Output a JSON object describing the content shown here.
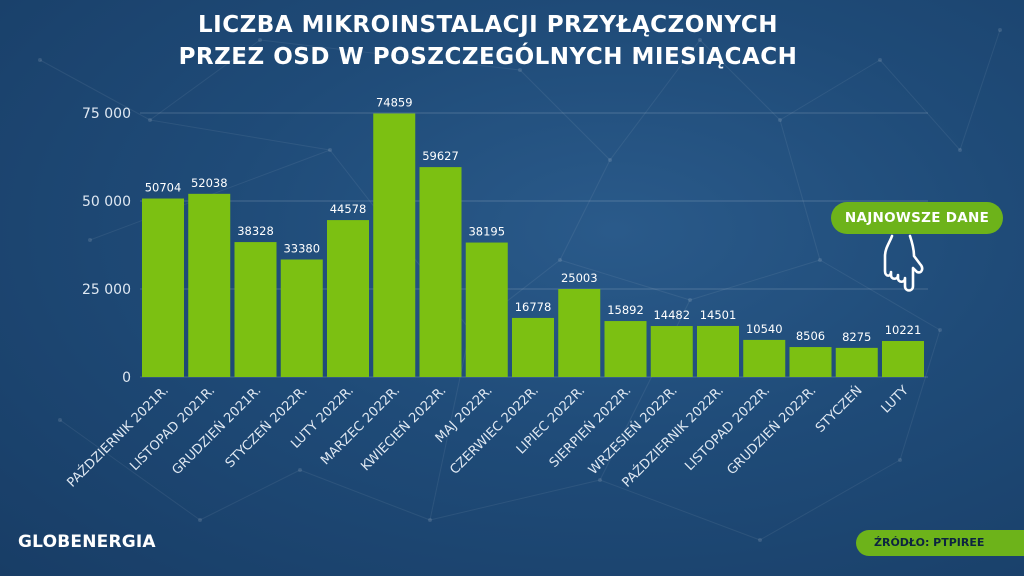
{
  "title_lines": [
    "LICZBA MIKROINSTALACJI PRZYŁĄCZONYCH",
    "PRZEZ OSD W POSZCZEGÓLNYCH MIESIĄCACH"
  ],
  "badge_text": "NAJNOWSZE DANE",
  "logo_text": "GLOBENERGIA",
  "source_text": "ŹRÓDŁO: PTPIREE",
  "colors": {
    "bar": "#7cc012",
    "accent": "#6db31a",
    "background": "#1f4b78"
  },
  "icons": [
    "pointing-hand-icon",
    "network-background-icon"
  ],
  "chart_data": {
    "type": "bar",
    "title": "LICZBA MIKROINSTALACJI PRZYŁĄCZONYCH PRZEZ OSD W POSZCZEGÓLNYCH MIESIĄCACH",
    "categories": [
      "PAŹDZIERNIK 2021R.",
      "LISTOPAD 2021R.",
      "GRUDZIEŃ 2021R.",
      "STYCZEŃ 2022R.",
      "LUTY 2022R.",
      "MARZEC 2022R.",
      "KWIECIEŃ 2022R.",
      "MAJ 2022R.",
      "CZERWIEC 2022R.",
      "LIPIEC 2022R.",
      "SIERPIEŃ 2022R.",
      "WRZESIEŃ 2022R.",
      "PAŹDZIERNIK 2022R.",
      "LISTOPAD 2022R.",
      "GRUDZIEŃ 2022R.",
      "STYCZEŃ",
      "LUTY"
    ],
    "values": [
      50704,
      52038,
      38328,
      33380,
      44578,
      74859,
      59627,
      38195,
      16778,
      25003,
      15892,
      14482,
      14501,
      10540,
      8506,
      8275,
      10221
    ],
    "value_labels": [
      "50704",
      "52038",
      "38328",
      "33380",
      "44578",
      "74859",
      "59627",
      "38195",
      "16778",
      "25003",
      "15892",
      "14482",
      "14501",
      "10540",
      "8506",
      "8275",
      "10221"
    ],
    "y_ticks": [
      0,
      25000,
      50000,
      75000
    ],
    "y_tick_labels": [
      "0",
      "25 000",
      "50 000",
      "75 000"
    ],
    "ylim": [
      0,
      75000
    ],
    "grid": true,
    "xlabel": "",
    "ylabel": ""
  }
}
